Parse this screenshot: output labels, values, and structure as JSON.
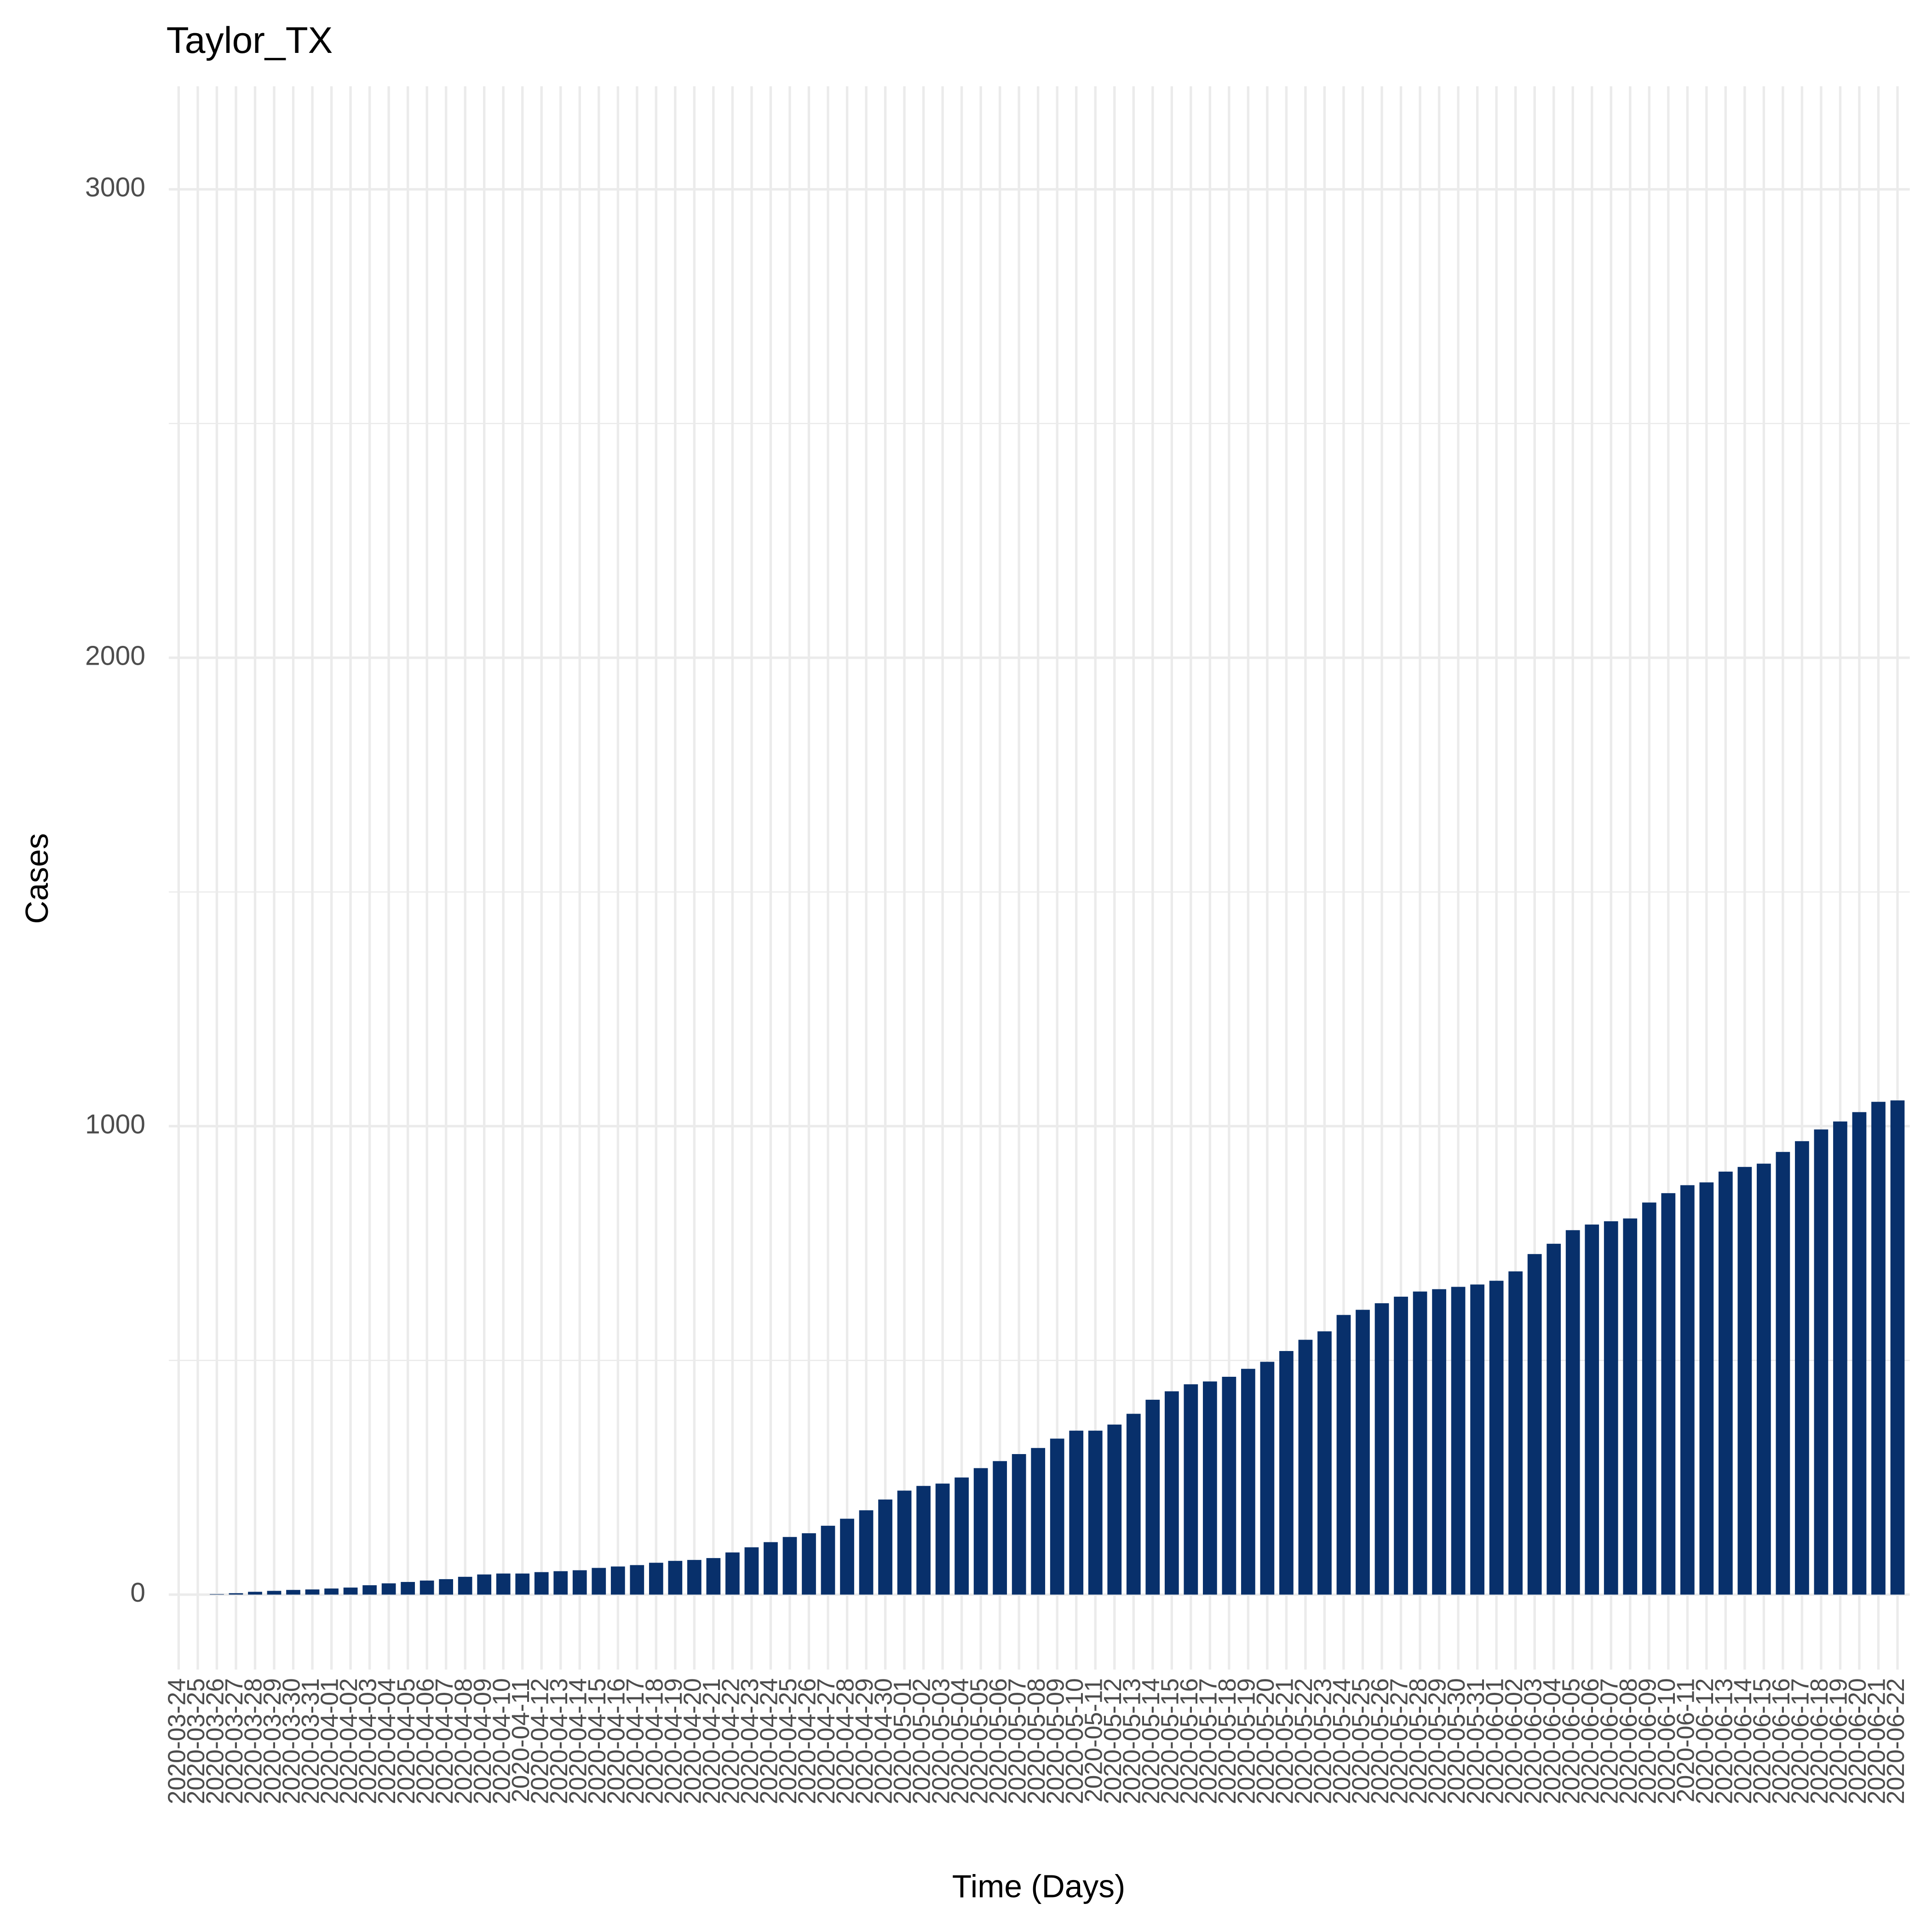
{
  "chart_data": {
    "type": "bar",
    "title": "Taylor_TX",
    "x_label": "Time (Days)",
    "y_label": "Cases",
    "categories": [
      "2020-03-24",
      "2020-03-25",
      "2020-03-26",
      "2020-03-27",
      "2020-03-28",
      "2020-03-29",
      "2020-03-30",
      "2020-03-31",
      "2020-04-01",
      "2020-04-02",
      "2020-04-03",
      "2020-04-04",
      "2020-04-05",
      "2020-04-06",
      "2020-04-07",
      "2020-04-08",
      "2020-04-09",
      "2020-04-10",
      "2020-04-11",
      "2020-04-12",
      "2020-04-13",
      "2020-04-14",
      "2020-04-15",
      "2020-04-16",
      "2020-04-17",
      "2020-04-18",
      "2020-04-19",
      "2020-04-20",
      "2020-04-21",
      "2020-04-22",
      "2020-04-23",
      "2020-04-24",
      "2020-04-25",
      "2020-04-26",
      "2020-04-27",
      "2020-04-28",
      "2020-04-29",
      "2020-04-30",
      "2020-05-01",
      "2020-05-02",
      "2020-05-03",
      "2020-05-04",
      "2020-05-05",
      "2020-05-06",
      "2020-05-07",
      "2020-05-08",
      "2020-05-09",
      "2020-05-10",
      "2020-05-11",
      "2020-05-12",
      "2020-05-13",
      "2020-05-14",
      "2020-05-15",
      "2020-05-16",
      "2020-05-17",
      "2020-05-18",
      "2020-05-19",
      "2020-05-20",
      "2020-05-21",
      "2020-05-22",
      "2020-05-23",
      "2020-05-24",
      "2020-05-25",
      "2020-05-26",
      "2020-05-27",
      "2020-05-28",
      "2020-05-29",
      "2020-05-30",
      "2020-05-31",
      "2020-06-01",
      "2020-06-02",
      "2020-06-03",
      "2020-06-04",
      "2020-06-05",
      "2020-06-06",
      "2020-06-07",
      "2020-06-08",
      "2020-06-09",
      "2020-06-10",
      "2020-06-11",
      "2020-06-12",
      "2020-06-13",
      "2020-06-14",
      "2020-06-15",
      "2020-06-16",
      "2020-06-17",
      "2020-06-18",
      "2020-06-19",
      "2020-06-20",
      "2020-06-21",
      "2020-06-22"
    ],
    "values": [
      0,
      0,
      1,
      3,
      6,
      8,
      10,
      11,
      13,
      15,
      20,
      24,
      27,
      30,
      33,
      38,
      43,
      45,
      45,
      48,
      50,
      52,
      57,
      60,
      63,
      68,
      72,
      74,
      78,
      90,
      101,
      112,
      123,
      131,
      147,
      162,
      180,
      203,
      222,
      232,
      237,
      250,
      270,
      285,
      300,
      313,
      333,
      350,
      350,
      363,
      386,
      416,
      434,
      449,
      455,
      465,
      482,
      497,
      520,
      544,
      562,
      597,
      608,
      622,
      636,
      647,
      652,
      657,
      662,
      670,
      690,
      727,
      749,
      778,
      790,
      797,
      803,
      837,
      857,
      874,
      880,
      903,
      913,
      920,
      945,
      968,
      993,
      1010,
      1030,
      1052,
      1055
    ],
    "color": "#08306b",
    "ylim": [
      -160,
      3220
    ],
    "yticks": [
      0,
      1000,
      2000,
      3000
    ],
    "y_minor_grid": [
      500,
      1500,
      2500
    ],
    "grid": true
  }
}
